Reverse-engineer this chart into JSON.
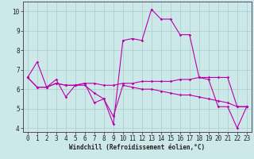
{
  "xlabel": "Windchill (Refroidissement éolien,°C)",
  "ylabel": "",
  "bg_color": "#cce8e8",
  "grid_color": "#aacccc",
  "line_color": "#bb00aa",
  "x": [
    0,
    1,
    2,
    3,
    4,
    5,
    6,
    7,
    8,
    9,
    10,
    11,
    12,
    13,
    14,
    15,
    16,
    17,
    18,
    19,
    20,
    21,
    22,
    23
  ],
  "line1": [
    6.6,
    7.4,
    6.1,
    6.5,
    5.6,
    6.2,
    6.3,
    5.3,
    5.5,
    4.2,
    8.5,
    8.6,
    8.5,
    10.1,
    9.6,
    9.6,
    8.8,
    8.8,
    6.6,
    6.5,
    5.1,
    5.1,
    4.0,
    5.1
  ],
  "line2": [
    6.6,
    6.1,
    6.1,
    6.3,
    6.2,
    6.2,
    6.3,
    6.3,
    6.2,
    6.2,
    6.3,
    6.3,
    6.4,
    6.4,
    6.4,
    6.4,
    6.5,
    6.5,
    6.6,
    6.6,
    6.6,
    6.6,
    5.1,
    5.1
  ],
  "line3": [
    6.6,
    6.1,
    6.1,
    6.3,
    6.2,
    6.2,
    6.2,
    5.8,
    5.5,
    4.6,
    6.2,
    6.1,
    6.0,
    6.0,
    5.9,
    5.8,
    5.7,
    5.7,
    5.6,
    5.5,
    5.4,
    5.3,
    5.1,
    5.1
  ],
  "xlim": [
    -0.5,
    23.5
  ],
  "ylim": [
    3.8,
    10.5
  ],
  "xticks": [
    0,
    1,
    2,
    3,
    4,
    5,
    6,
    7,
    8,
    9,
    10,
    11,
    12,
    13,
    14,
    15,
    16,
    17,
    18,
    19,
    20,
    21,
    22,
    23
  ],
  "yticks": [
    4,
    5,
    6,
    7,
    8,
    9,
    10
  ],
  "tick_fontsize": 5.5,
  "xlabel_fontsize": 5.5,
  "marker_size": 1.8,
  "line_width": 0.8
}
